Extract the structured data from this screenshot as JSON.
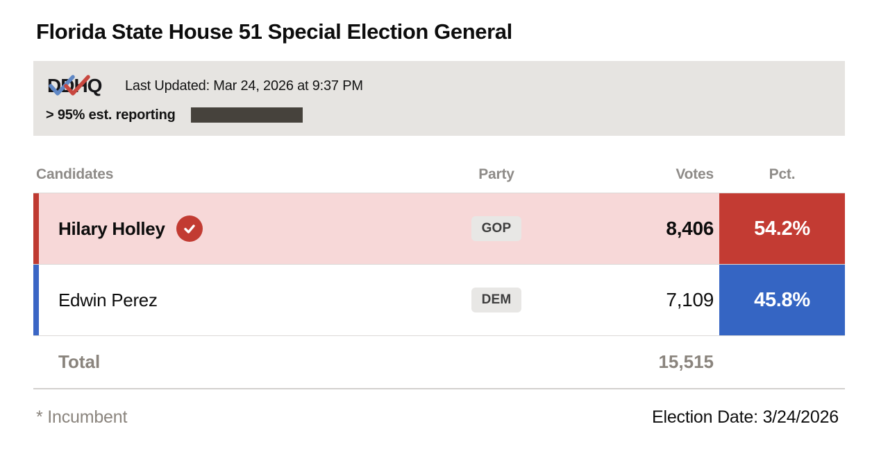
{
  "page": {
    "title": "Florida State House 51 Special Election General"
  },
  "status_bar": {
    "logo_text": "DDHQ",
    "last_updated": "Last Updated: Mar 24, 2026 at 9:37 PM",
    "reporting_label": "> 95% est. reporting",
    "reporting_percent": 96,
    "bar_fill_color": "#46423c",
    "bar_bg_color": "#e6e4e1"
  },
  "table": {
    "headers": {
      "candidates": "Candidates",
      "party": "Party",
      "votes": "Votes",
      "pct": "Pct."
    },
    "rows": [
      {
        "name": "Hilary Holley",
        "party": "GOP",
        "votes": "8,406",
        "pct": "54.2%",
        "winner": true,
        "accent_color": "#bf3a31",
        "row_bg": "#f7d8d8",
        "pct_bg": "#c33b33"
      },
      {
        "name": "Edwin Perez",
        "party": "DEM",
        "votes": "7,109",
        "pct": "45.8%",
        "winner": false,
        "accent_color": "#3b66c5",
        "row_bg": "#ffffff",
        "pct_bg": "#3565c3"
      }
    ],
    "total_label": "Total",
    "total_votes": "15,515"
  },
  "footer": {
    "incumbent_note": "* Incumbent",
    "election_date": "Election Date: 3/24/2026"
  },
  "colors": {
    "winner_check_circle": "#c23b32",
    "logo_check_blue": "#5f87c5",
    "logo_check_red": "#c8473f",
    "status_bar_bg": "#e6e4e1"
  }
}
